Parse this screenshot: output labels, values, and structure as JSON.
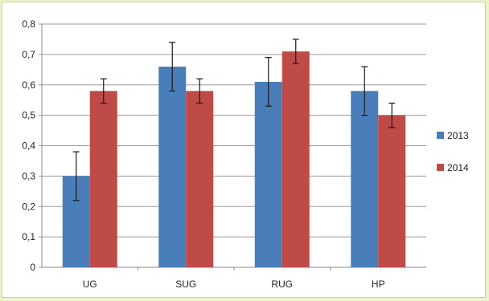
{
  "chart_data": {
    "type": "bar",
    "title": "",
    "xlabel": "",
    "ylabel": "",
    "ylim": [
      0,
      0.8
    ],
    "yticks": [
      "0",
      "0,1",
      "0,2",
      "0,3",
      "0,4",
      "0,5",
      "0,6",
      "0,7",
      "0,8"
    ],
    "categories": [
      "UG",
      "SUG",
      "RUG",
      "HP"
    ],
    "grid": true,
    "legend_position": "right",
    "series": [
      {
        "name": "2013",
        "color": "#4a7ebb",
        "values": [
          0.3,
          0.66,
          0.61,
          0.58
        ],
        "errors": [
          0.08,
          0.08,
          0.08,
          0.08
        ]
      },
      {
        "name": "2014",
        "color": "#be4b48",
        "values": [
          0.58,
          0.58,
          0.71,
          0.5
        ],
        "errors": [
          0.04,
          0.04,
          0.04,
          0.04
        ]
      }
    ]
  }
}
